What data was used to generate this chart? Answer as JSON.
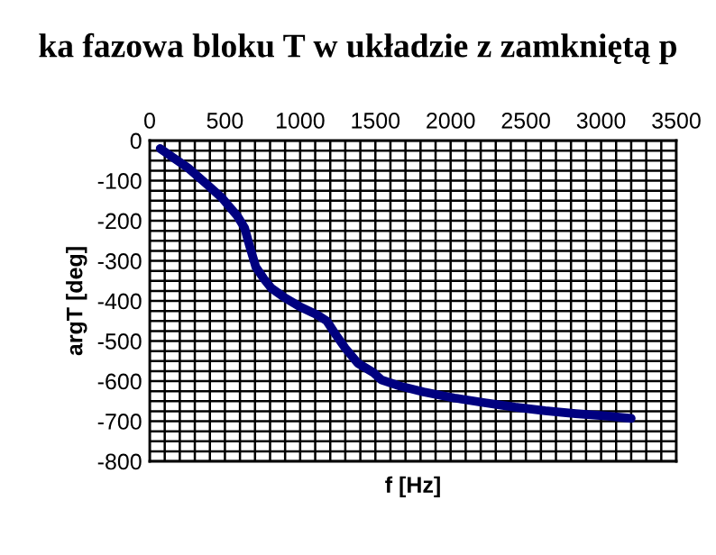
{
  "chart_data": {
    "type": "line",
    "title": "ka fazowa bloku T w układzie z zamkniętą p",
    "xlabel": "f [Hz]",
    "ylabel": "argT [deg]",
    "x": [
      70,
      254,
      377,
      480,
      582,
      631,
      664,
      705,
      759,
      808,
      890,
      992,
      1115,
      1177,
      1238,
      1300,
      1382,
      1484,
      1540,
      1661,
      1820,
      2024,
      2226,
      2427,
      2629,
      2831,
      3032,
      3200
    ],
    "series": [
      {
        "color": "#000080",
        "values": [
          -20,
          -68,
          -108,
          -143,
          -188,
          -218,
          -263,
          -315,
          -345,
          -368,
          -390,
          -413,
          -435,
          -450,
          -485,
          -518,
          -555,
          -578,
          -597,
          -612,
          -627,
          -642,
          -654,
          -665,
          -674,
          -681,
          -687,
          -693
        ]
      }
    ],
    "xlim": [
      0,
      3500
    ],
    "ylim": [
      -800,
      0
    ],
    "xticks": [
      0,
      {
        "value": 100,
        "label": null
      },
      {
        "value": 200,
        "label": null
      },
      {
        "value": 300,
        "label": null
      },
      {
        "value": 400,
        "label": null
      },
      500,
      {
        "value": 600,
        "label": null
      },
      {
        "value": 700,
        "label": null
      },
      {
        "value": 800,
        "label": null
      },
      {
        "value": 900,
        "label": null
      },
      1000,
      {
        "value": 1100,
        "label": null
      },
      {
        "value": 1200,
        "label": null
      },
      {
        "value": 1300,
        "label": null
      },
      {
        "value": 1400,
        "label": null
      },
      1500,
      {
        "value": 1600,
        "label": null
      },
      {
        "value": 1700,
        "label": null
      },
      {
        "value": 1800,
        "label": null
      },
      {
        "value": 1900,
        "label": null
      },
      2000,
      {
        "value": 2100,
        "label": null
      },
      {
        "value": 2200,
        "label": null
      },
      {
        "value": 2300,
        "label": null
      },
      {
        "value": 2400,
        "label": null
      },
      2500,
      {
        "value": 2600,
        "label": null
      },
      {
        "value": 2700,
        "label": null
      },
      {
        "value": 2800,
        "label": null
      },
      {
        "value": 2900,
        "label": null
      },
      3000,
      {
        "value": 3100,
        "label": null
      },
      {
        "value": 3200,
        "label": null
      },
      {
        "value": 3300,
        "label": null
      },
      {
        "value": 3400,
        "label": null
      },
      3500
    ],
    "yticks": [
      0,
      {
        "value": -25,
        "label": null
      },
      {
        "value": -50,
        "label": null
      },
      {
        "value": -75,
        "label": null
      },
      -100,
      {
        "value": -125,
        "label": null
      },
      {
        "value": -150,
        "label": null
      },
      {
        "value": -175,
        "label": null
      },
      -200,
      {
        "value": -225,
        "label": null
      },
      {
        "value": -250,
        "label": null
      },
      {
        "value": -275,
        "label": null
      },
      -300,
      {
        "value": -325,
        "label": null
      },
      {
        "value": -350,
        "label": null
      },
      {
        "value": -375,
        "label": null
      },
      -400,
      {
        "value": -425,
        "label": null
      },
      {
        "value": -450,
        "label": null
      },
      {
        "value": -475,
        "label": null
      },
      -500,
      {
        "value": -525,
        "label": null
      },
      {
        "value": -550,
        "label": null
      },
      {
        "value": -575,
        "label": null
      },
      -600,
      {
        "value": -625,
        "label": null
      },
      {
        "value": -650,
        "label": null
      },
      {
        "value": -675,
        "label": null
      },
      -700,
      {
        "value": -725,
        "label": null
      },
      {
        "value": -750,
        "label": null
      },
      {
        "value": -775,
        "label": null
      },
      -800
    ],
    "grid": true,
    "legend": false,
    "marker": "none",
    "line_style": "solid"
  }
}
